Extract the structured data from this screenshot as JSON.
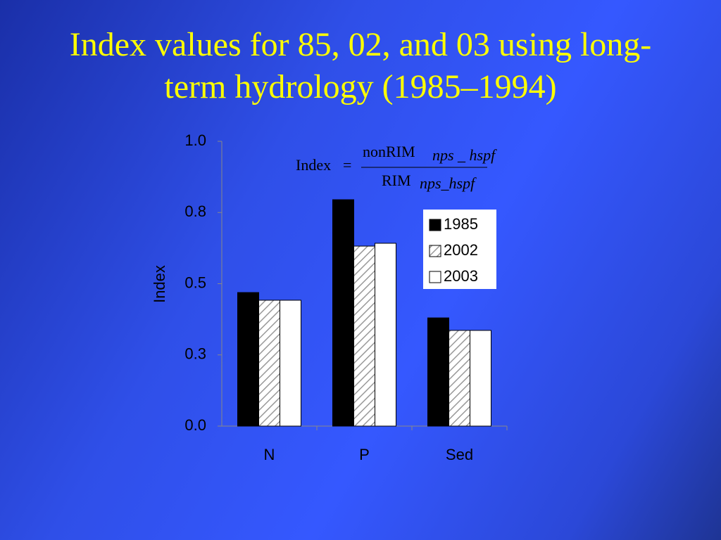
{
  "chart_data": {
    "type": "bar",
    "title": "Index values for 85, 02, and 03 using long-term hydrology (1985–1994)",
    "y_label": "Index",
    "categories": [
      "N",
      "P",
      "Sed"
    ],
    "series": [
      {
        "name": "1985",
        "color": "#000000",
        "values": [
          0.469,
          0.795,
          0.38
        ]
      },
      {
        "name": "2002",
        "color": "#ffffff",
        "hatch": true,
        "values": [
          0.442,
          0.632,
          0.336
        ]
      },
      {
        "name": "2003",
        "color": "#ffffff",
        "values": [
          0.442,
          0.642,
          0.336
        ]
      }
    ],
    "ylim": [
      0,
      1
    ],
    "yticks": [
      {
        "value": 0,
        "label": "0.0"
      },
      {
        "value": 0.25,
        "label": "0.3"
      },
      0.5,
      {
        "value": 0.75,
        "label": "0.8"
      },
      {
        "value": 1,
        "label": "1.0"
      }
    ],
    "legend": "upper right",
    "formula": {
      "left": "Index",
      "equals": "=",
      "numerator": "nonRIM",
      "numerator_sub": "nps _ hspf",
      "denominator": "RIM",
      "denominator_sub": "nps_hspf"
    }
  }
}
